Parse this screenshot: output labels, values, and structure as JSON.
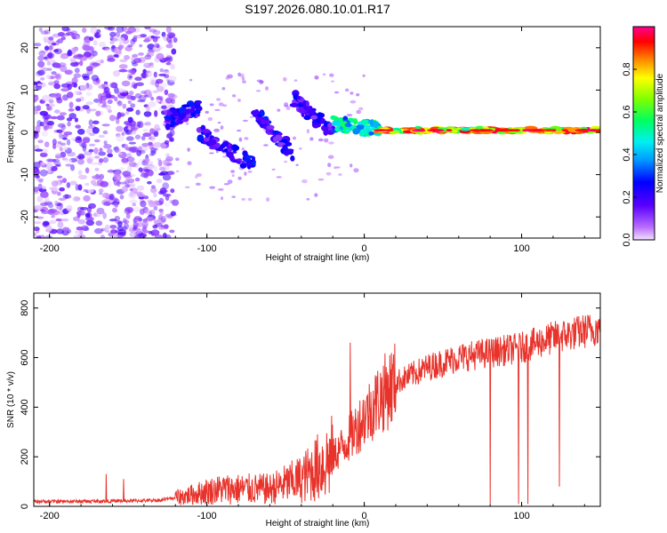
{
  "title": "S197.2026.080.10.01.R17",
  "chart_data": [
    {
      "type": "heatmap",
      "name": "spectrogram",
      "xlabel": "Height of straight line (km)",
      "ylabel": "Frequency (Hz)",
      "xlim": [
        -210,
        150
      ],
      "ylim": [
        -25,
        25
      ],
      "xticks": [
        -200,
        -100,
        0,
        100
      ],
      "yticks": [
        -20,
        -10,
        0,
        10,
        20
      ],
      "colorbar": {
        "label": "Normalized spectral amplitude",
        "range": [
          0,
          1
        ],
        "ticks": [
          0.0,
          0.2,
          0.4,
          0.6,
          0.8
        ],
        "tick_labels": [
          "0.0",
          "0.2",
          "0.4",
          "0.6",
          "0.8"
        ]
      },
      "signal_segments": [
        {
          "x": [
            -210,
            -120
          ],
          "freq": [
            -25,
            25
          ],
          "amplitude": [
            0.0,
            0.2
          ],
          "note": "noise"
        },
        {
          "x": [
            -125,
            -105
          ],
          "freq_center": [
            3,
            6
          ],
          "amplitude": [
            0.1,
            0.3
          ]
        },
        {
          "x": [
            -105,
            -70
          ],
          "freq_center": [
            0,
            -8
          ],
          "amplitude": [
            0.1,
            0.3
          ]
        },
        {
          "x": [
            -70,
            -45
          ],
          "freq_center": [
            5,
            -5
          ],
          "amplitude": [
            0.1,
            0.3
          ]
        },
        {
          "x": [
            -45,
            -20
          ],
          "freq_center": [
            8,
            0
          ],
          "amplitude": [
            0.1,
            0.3
          ]
        },
        {
          "x": [
            -20,
            10
          ],
          "freq_center": [
            2,
            0.5
          ],
          "amplitude": [
            0.3,
            0.6
          ]
        },
        {
          "x": [
            10,
            150
          ],
          "freq_center": [
            0.5,
            0.5
          ],
          "amplitude": [
            0.5,
            1.0
          ]
        }
      ]
    },
    {
      "type": "line",
      "name": "snr",
      "xlabel": "Height of straight line (km)",
      "ylabel": "SNR (10 * v/v)",
      "xlim": [
        -210,
        150
      ],
      "ylim": [
        0,
        860
      ],
      "xticks": [
        -200,
        -100,
        0,
        100
      ],
      "yticks": [
        0,
        200,
        400,
        600,
        800
      ],
      "color": "#e8322a",
      "series": [
        {
          "name": "SNR",
          "envelope": {
            "x": [
              -210,
              -180,
              -150,
              -130,
              -115,
              -100,
              -90,
              -80,
              -60,
              -40,
              -20,
              -10,
              0,
              10,
              20,
              40,
              60,
              80,
              100,
              120,
              150
            ],
            "y": [
              20,
              20,
              22,
              25,
              40,
              60,
              70,
              70,
              70,
              110,
              200,
              270,
              360,
              440,
              500,
              560,
              600,
              620,
              640,
              680,
              720
            ]
          },
          "spikes": [
            {
              "x": -164,
              "y": 130
            },
            {
              "x": -153,
              "y": 110
            },
            {
              "x": -9,
              "y": 660
            },
            {
              "x": 80,
              "y": 10
            },
            {
              "x": 98,
              "y": 10
            },
            {
              "x": 104,
              "y": 10
            },
            {
              "x": 124,
              "y": 80
            }
          ]
        }
      ]
    }
  ]
}
